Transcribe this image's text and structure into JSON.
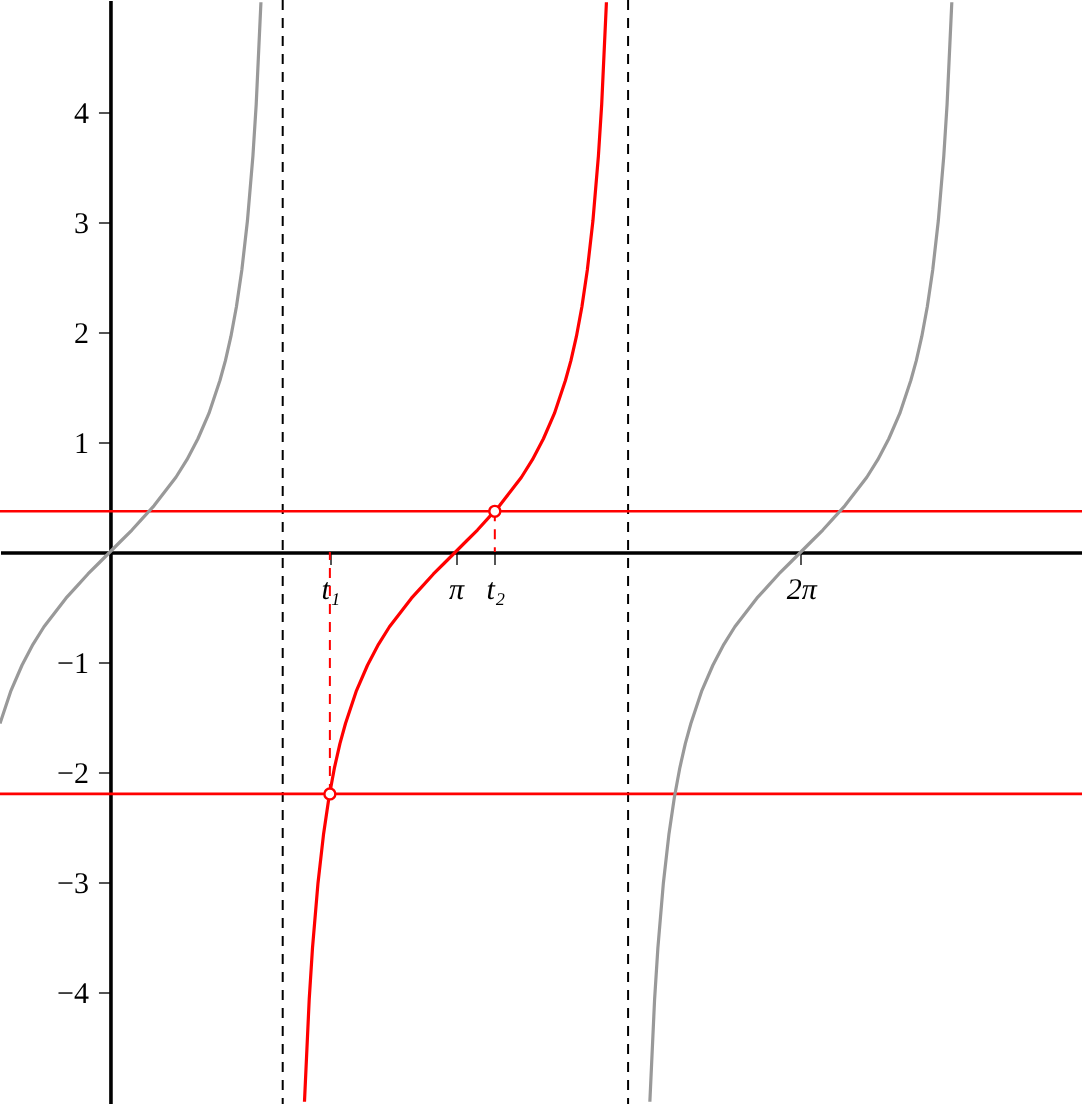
{
  "chart_data": {
    "type": "line",
    "xlim": [
      -1,
      8.84
    ],
    "ylim": [
      -5.02,
      5.02
    ],
    "xticks": [
      {
        "value": 2.0,
        "label": "t₁"
      },
      {
        "value": 3.142,
        "label": "π"
      },
      {
        "value": 3.5,
        "label": "t₂"
      },
      {
        "value": 6.283,
        "label": "2π"
      }
    ],
    "yticks": [
      -4,
      -3,
      -2,
      -1,
      1,
      2,
      3,
      4
    ],
    "grid": false,
    "ref_lines": [
      {
        "axis": "x",
        "value": 1.571,
        "color": "#000000",
        "line_style": "dashed"
      },
      {
        "axis": "x",
        "value": 4.712,
        "color": "#000000",
        "line_style": "dashed"
      },
      {
        "axis": "y",
        "value": 0.37,
        "color": "#ff0000",
        "line_style": "solid"
      },
      {
        "axis": "y",
        "value": -2.2,
        "color": "#ff0000",
        "line_style": "solid"
      }
    ],
    "series": [
      {
        "color": "#999999",
        "x": [
          -1.0,
          -0.9,
          -0.8,
          -0.7,
          -0.6,
          -0.5,
          -0.4,
          -0.3,
          -0.2,
          -0.1,
          0,
          0.1,
          0.2,
          0.3,
          0.4,
          0.5,
          0.6,
          0.7,
          0.8,
          0.9,
          1.0,
          1.05,
          1.1,
          1.15,
          1.2,
          1.25,
          1.3,
          1.33,
          1.373
        ],
        "values": [
          -1.56,
          -1.26,
          -1.03,
          -0.84,
          -0.68,
          -0.55,
          -0.42,
          -0.31,
          -0.2,
          -0.1,
          0,
          0.1,
          0.2,
          0.31,
          0.42,
          0.55,
          0.68,
          0.84,
          1.03,
          1.26,
          1.56,
          1.74,
          1.96,
          2.23,
          2.57,
          3.01,
          3.6,
          4.07,
          5.0
        ]
      },
      {
        "color": "#999999",
        "x": [
          4.91,
          4.953,
          4.983,
          5.033,
          5.083,
          5.133,
          5.183,
          5.233,
          5.283,
          5.383,
          5.483,
          5.583,
          5.683,
          5.783,
          5.883,
          5.983,
          6.083,
          6.183,
          6.283,
          6.383,
          6.483,
          6.583,
          6.683,
          6.783,
          6.883,
          6.983,
          7.083,
          7.183,
          7.283,
          7.333,
          7.383,
          7.433,
          7.483,
          7.533,
          7.583,
          7.613,
          7.656
        ],
        "values": [
          -5.0,
          -4.07,
          -3.6,
          -3.01,
          -2.57,
          -2.23,
          -1.96,
          -1.74,
          -1.56,
          -1.26,
          -1.03,
          -0.84,
          -0.68,
          -0.55,
          -0.42,
          -0.31,
          -0.2,
          -0.1,
          0,
          0.1,
          0.2,
          0.31,
          0.42,
          0.55,
          0.68,
          0.84,
          1.03,
          1.26,
          1.56,
          1.74,
          1.96,
          2.23,
          2.57,
          3.01,
          3.6,
          4.07,
          5.0
        ]
      },
      {
        "color": "#ff0000",
        "x": [
          1.769,
          1.812,
          1.842,
          1.892,
          1.942,
          1.992,
          2.042,
          2.092,
          2.142,
          2.242,
          2.342,
          2.442,
          2.542,
          2.642,
          2.742,
          2.842,
          2.942,
          3.042,
          3.142,
          3.242,
          3.342,
          3.442,
          3.542,
          3.642,
          3.742,
          3.842,
          3.942,
          4.042,
          4.142,
          4.192,
          4.242,
          4.292,
          4.342,
          4.392,
          4.442,
          4.472,
          4.515
        ],
        "values": [
          -5.0,
          -4.07,
          -3.6,
          -3.01,
          -2.57,
          -2.23,
          -1.96,
          -1.74,
          -1.56,
          -1.26,
          -1.03,
          -0.84,
          -0.68,
          -0.55,
          -0.42,
          -0.31,
          -0.2,
          -0.1,
          0,
          0.1,
          0.2,
          0.31,
          0.42,
          0.55,
          0.68,
          0.84,
          1.03,
          1.26,
          1.56,
          1.74,
          1.96,
          2.23,
          2.57,
          3.01,
          3.6,
          4.07,
          5.0
        ]
      },
      {
        "color": "#ff0000",
        "line_style": "dashed",
        "x": [
          2.0,
          2.0,
          2.75,
          3.5,
          3.5
        ],
        "values": [
          -2.2,
          0,
          null,
          0.37,
          0
        ]
      },
      {
        "type": "scatter",
        "color": "#ff0000",
        "marker": "circle",
        "x": [
          2.0,
          3.5
        ],
        "values": [
          -2.2,
          0.37
        ]
      }
    ]
  }
}
